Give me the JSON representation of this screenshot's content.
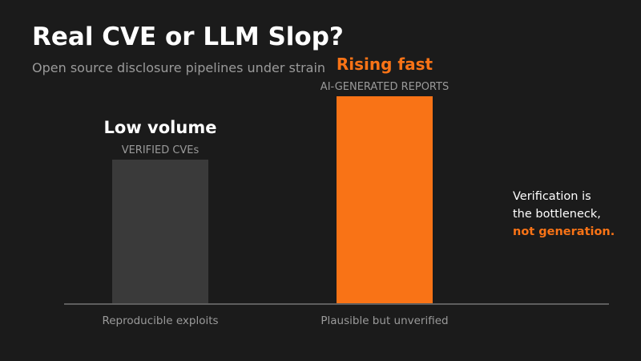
{
  "title": "Real CVE or LLM Slop?",
  "subtitle": "Open source disclosure pipelines under strain",
  "callout": {
    "line1": "Verification is",
    "line2": "the bottleneck,",
    "line3": "not generation."
  },
  "colors": {
    "background": "#1b1b1b",
    "accent": "#f97316",
    "muted_bar": "#3a3a3a",
    "muted_text": "#9a9a9a"
  },
  "chart_data": {
    "type": "bar",
    "categories": [
      "Reproducible exploits",
      "Plausible but unverified"
    ],
    "values": [
      1,
      1.44
    ],
    "headline_labels": [
      "Low volume",
      "Rising fast"
    ],
    "sub_labels": [
      "VERIFIED CVEs",
      "AI-GENERATED REPORTS"
    ],
    "bar_colors": [
      "#3a3a3a",
      "#f97316"
    ],
    "headline_colors": [
      "#ffffff",
      "#f97316"
    ],
    "ylim": [
      0,
      1.44
    ],
    "grid": false,
    "legend": "none"
  }
}
